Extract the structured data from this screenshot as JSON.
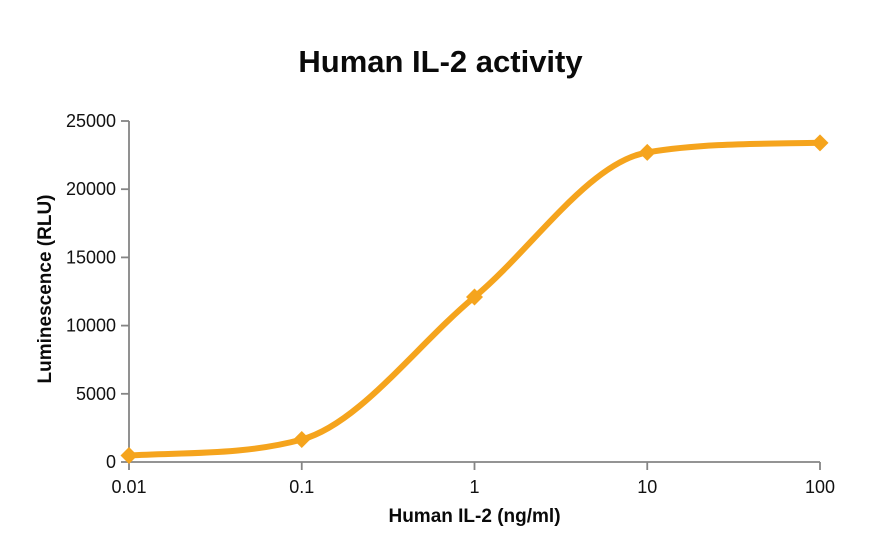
{
  "chart_data": {
    "type": "line",
    "title": "Human IL-2 activity",
    "xlabel": "Human IL-2 (ng/ml)",
    "ylabel": "Luminescence (RLU)",
    "x_scale": "log",
    "x": [
      0.01,
      0.1,
      1,
      10,
      100
    ],
    "series": [
      {
        "name": "Human IL-2",
        "values": [
          480,
          1650,
          12100,
          22700,
          23400
        ]
      }
    ],
    "xtick_labels": [
      "0.01",
      "0.1",
      "1",
      "10",
      "100"
    ],
    "yticks": [
      0,
      5000,
      10000,
      15000,
      20000,
      25000
    ],
    "ytick_labels": [
      "0",
      "5000",
      "10000",
      "15000",
      "20000",
      "25000"
    ],
    "xlim": [
      0.01,
      100
    ],
    "ylim": [
      0,
      25000
    ],
    "grid": false,
    "legend": "none",
    "style": {
      "line_color": "#F5A41D",
      "marker": "diamond",
      "marker_size": 8.5,
      "line_width": 6,
      "axis_color": "#858585",
      "tick_color": "#858585",
      "text_color": "#111111",
      "background": "#FFFFFF"
    }
  }
}
